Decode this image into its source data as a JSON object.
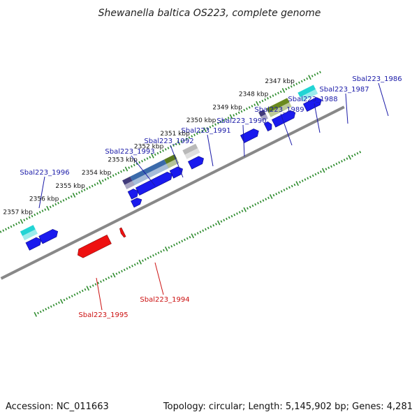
{
  "title": "Shewanella baltica OS223, complete genome",
  "footer": {
    "accession": "Accession: NC_011663",
    "summary": "Topology: circular; Length: 5,145,902 bp; Genes: 4,281"
  },
  "colors": {
    "forward_label": "#1a1aa8",
    "reverse_label": "#cc1111",
    "backbone": "#888888",
    "ticks": "#2a8a2a",
    "cds_blue": "#1a1aee",
    "cds_red": "#ee1111"
  },
  "kbp_labels": [
    {
      "text": "2357 kbp",
      "kbp": 2357
    },
    {
      "text": "2356 kbp",
      "kbp": 2356
    },
    {
      "text": "2355 kbp",
      "kbp": 2355
    },
    {
      "text": "2354 kbp",
      "kbp": 2354
    },
    {
      "text": "2353 kbp",
      "kbp": 2353
    },
    {
      "text": "2352 kbp",
      "kbp": 2352
    },
    {
      "text": "2351 kbp",
      "kbp": 2351
    },
    {
      "text": "2350 kbp",
      "kbp": 2350
    },
    {
      "text": "2349 kbp",
      "kbp": 2349
    },
    {
      "text": "2348 kbp",
      "kbp": 2348
    },
    {
      "text": "2347 kbp",
      "kbp": 2347
    }
  ],
  "genes_forward": [
    {
      "name": "Sbal223_1986",
      "kbp_start": 2346.6,
      "kbp_end": 2346.0,
      "feature_color": "#22d4d4"
    },
    {
      "name": "Sbal223_1987",
      "kbp_start": 2347.8,
      "kbp_end": 2347.0,
      "feature_color": "#6a8a1e"
    },
    {
      "name": "Sbal223_1988",
      "kbp_start": 2348.1,
      "kbp_end": 2347.9,
      "feature_color": "#403a7a"
    },
    {
      "name": "Sbal223_1989",
      "kbp_start": 2349.0,
      "kbp_end": 2348.4,
      "feature_color": null
    },
    {
      "name": "Sbal223_1990",
      "kbp_start": 2351.0,
      "kbp_end": 2350.5,
      "feature_color": "#b8b8b8"
    },
    {
      "name": "Sbal223_1991",
      "kbp_start": 2351.7,
      "kbp_end": 2351.3,
      "feature_color": "#5a7a1e"
    },
    {
      "name": "Sbal223_1992",
      "kbp_start": 2353.0,
      "kbp_end": 2351.7,
      "feature_color": "#3a6aaa"
    },
    {
      "name": "Sbal223_1993",
      "kbp_start": 2353.3,
      "kbp_end": 2353.0,
      "feature_color": "#403a7a"
    },
    {
      "name": "Sbal223_1996",
      "kbp_start": 2357.2,
      "kbp_end": 2356.7,
      "feature_color": "#22d4d4"
    }
  ],
  "genes_reverse": [
    {
      "name": "Sbal223_1995",
      "kbp_start": 2355.8,
      "kbp_end": 2354.6
    },
    {
      "name": "Sbal223_1994",
      "kbp_start": 2354.15,
      "kbp_end": 2354.05
    }
  ]
}
